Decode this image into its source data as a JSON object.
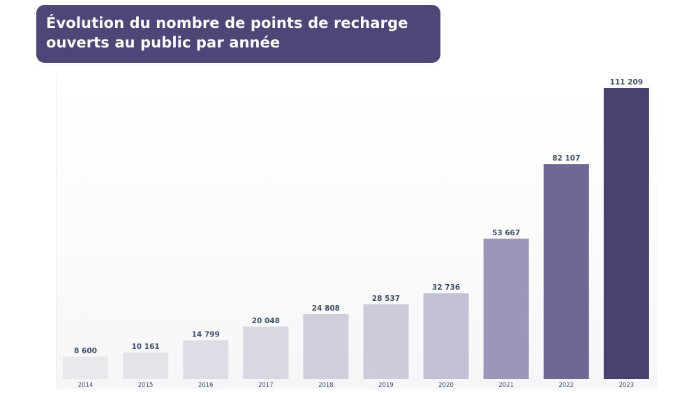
{
  "title": {
    "line1": "Évolution du nombre de points de recharge",
    "line2": "ouverts au public par année"
  },
  "chart_data": {
    "type": "bar",
    "title": "Évolution du nombre de points de recharge ouverts au public par année",
    "categories": [
      "2014",
      "2015",
      "2016",
      "2017",
      "2018",
      "2019",
      "2020",
      "2021",
      "2022",
      "2023"
    ],
    "values": [
      8600,
      10161,
      14799,
      20048,
      24808,
      28537,
      32736,
      53667,
      82107,
      111209
    ],
    "value_labels": [
      "8 600",
      "10 161",
      "14 799",
      "20 048",
      "24 808",
      "28 537",
      "32 736",
      "53 667",
      "82 107",
      "111 209"
    ],
    "bar_colors": [
      "#e9e8ed",
      "#e5e4ea",
      "#dedce5",
      "#d9d7e1",
      "#d2cfdd",
      "#cdcadb",
      "#c5c1d5",
      "#9d96b8",
      "#6f6794",
      "#4a4170"
    ],
    "ylim": [
      0,
      111209
    ],
    "xlabel": "",
    "ylabel": "",
    "grid": false,
    "legend": "none"
  }
}
